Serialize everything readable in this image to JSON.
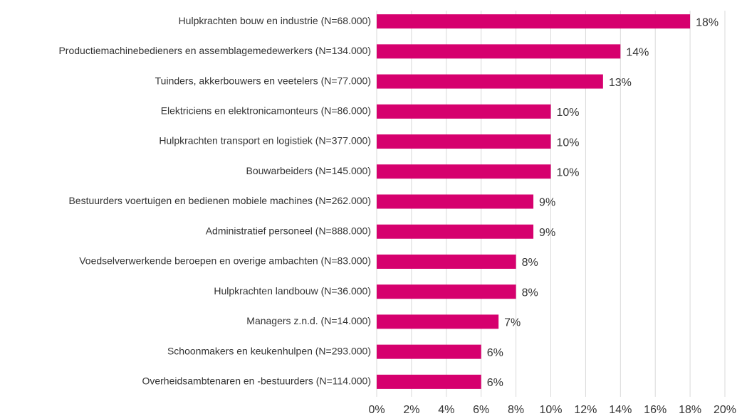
{
  "chart_data": {
    "type": "bar",
    "orientation": "horizontal",
    "categories": [
      "Hulpkrachten bouw en industrie (N=68.000)",
      "Productiemachinebedieners en assemblagemedewerkers (N=134.000)",
      "Tuinders, akkerbouwers en veetelers (N=77.000)",
      "Elektriciens en elektronicamonteurs (N=86.000)",
      "Hulpkrachten transport en logistiek (N=377.000)",
      "Bouwarbeiders (N=145.000)",
      "Bestuurders voertuigen en bedienen mobiele machines (N=262.000)",
      "Administratief personeel (N=888.000)",
      "Voedselverwerkende beroepen en overige ambachten (N=83.000)",
      "Hulpkrachten landbouw (N=36.000)",
      "Managers z.n.d. (N=14.000)",
      "Schoonmakers en keukenhulpen (N=293.000)",
      "Overheidsambtenaren en -bestuurders (N=114.000)"
    ],
    "values": [
      18,
      14,
      13,
      10,
      10,
      10,
      9,
      9,
      8,
      8,
      7,
      6,
      6
    ],
    "value_labels": [
      "18%",
      "14%",
      "13%",
      "10%",
      "10%",
      "10%",
      "9%",
      "9%",
      "8%",
      "8%",
      "7%",
      "6%",
      "6%"
    ],
    "color": "#d6006e",
    "xlim": [
      0,
      20
    ],
    "xticks": [
      {
        "value": 0,
        "label": "0%"
      },
      {
        "value": 2,
        "label": "2%"
      },
      {
        "value": 4,
        "label": "4%"
      },
      {
        "value": 6,
        "label": "6%"
      },
      {
        "value": 8,
        "label": "8%"
      },
      {
        "value": 10,
        "label": "10%"
      },
      {
        "value": 12,
        "label": "12%"
      },
      {
        "value": 14,
        "label": "14%"
      },
      {
        "value": 16,
        "label": "16%"
      },
      {
        "value": 18,
        "label": "18%"
      },
      {
        "value": 20,
        "label": "20%"
      }
    ],
    "grid": true
  }
}
